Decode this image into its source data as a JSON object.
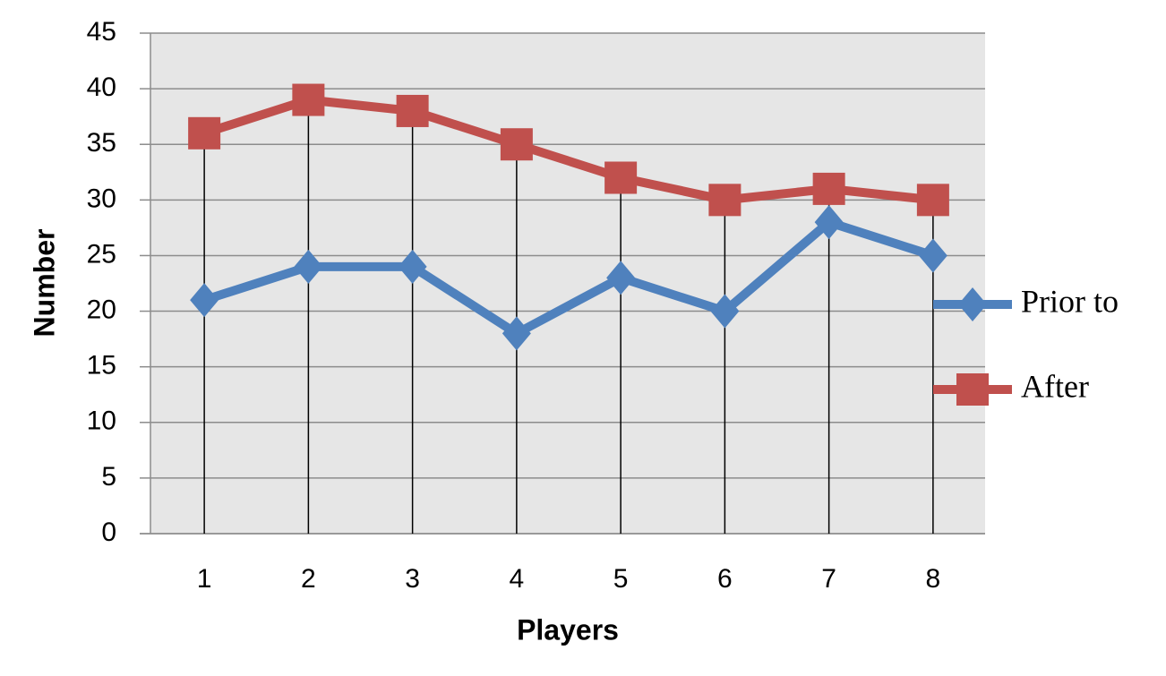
{
  "chart_data": {
    "type": "line",
    "x_label": "Players",
    "y_label": "Number",
    "categories": [
      "1",
      "2",
      "3",
      "4",
      "5",
      "6",
      "7",
      "8"
    ],
    "series": [
      {
        "name": "Prior to",
        "color": "#4f81bd",
        "marker": "diamond",
        "values": [
          21,
          24,
          24,
          18,
          23,
          20,
          28,
          25
        ]
      },
      {
        "name": "After",
        "color": "#c0504d",
        "marker": "square",
        "values": [
          36,
          39,
          38,
          35,
          32,
          30,
          31,
          30
        ]
      }
    ],
    "ylim": [
      0,
      45
    ],
    "yticks": [
      0,
      5,
      10,
      15,
      20,
      25,
      30,
      35,
      40,
      45
    ],
    "grid": true,
    "drop_lines": true,
    "legend": "right"
  }
}
